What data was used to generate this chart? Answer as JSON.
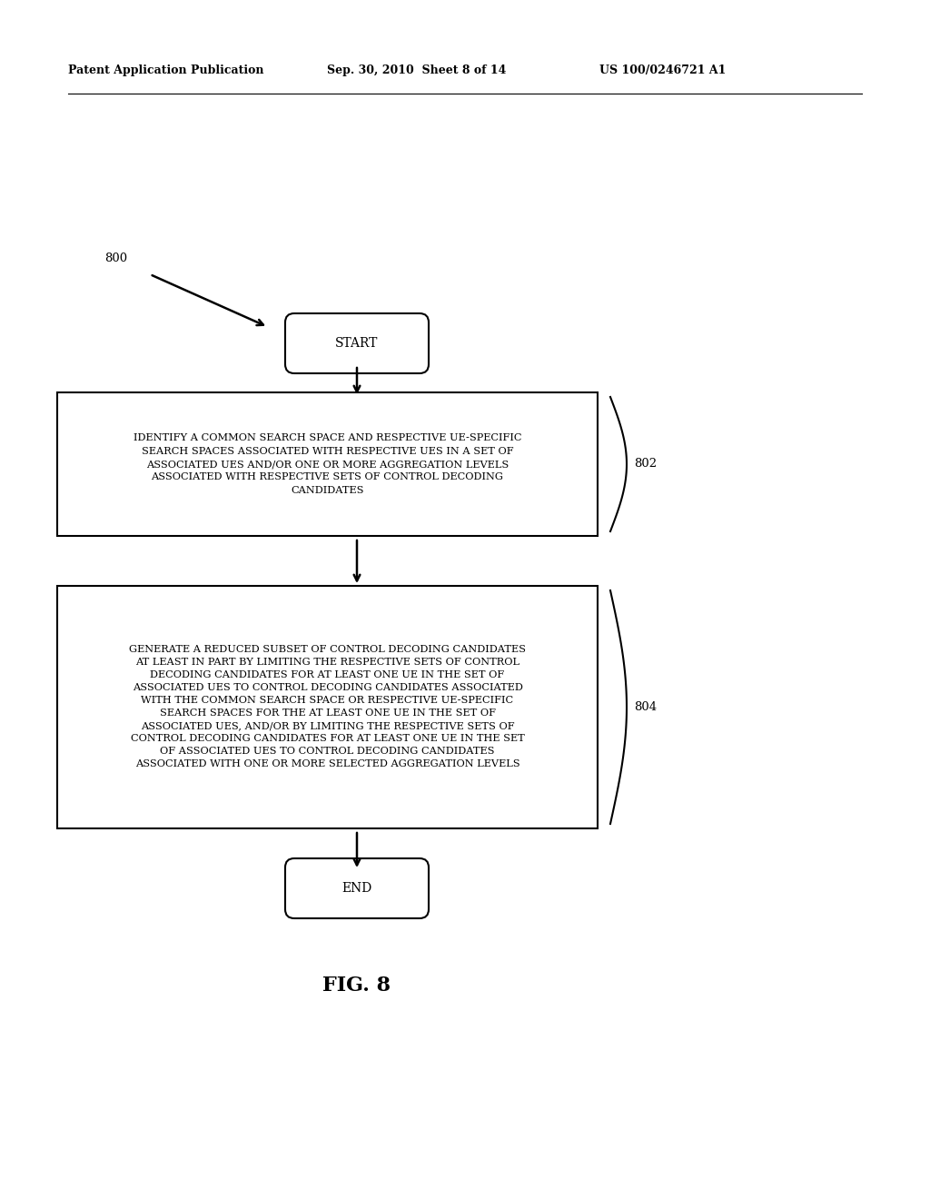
{
  "background_color": "#ffffff",
  "header_left": "Patent Application Publication",
  "header_mid": "Sep. 30, 2010  Sheet 8 of 14",
  "header_right": "US 100/0246721 A1",
  "fig_label": "FIG. 8",
  "diagram_label": "800",
  "label_802": "802",
  "label_804": "804",
  "start_text": "START",
  "end_text": "END",
  "box1_text": "IDENTIFY A COMMON SEARCH SPACE AND RESPECTIVE UE-SPECIFIC\nSEARCH SPACES ASSOCIATED WITH RESPECTIVE UES IN A SET OF\nASSOCIATED UES AND/OR ONE OR MORE AGGREGATION LEVELS\nASSOCIATED WITH RESPECTIVE SETS OF CONTROL DECODING\nCANDIDATES",
  "box2_text": "GENERATE A REDUCED SUBSET OF CONTROL DECODING CANDIDATES\nAT LEAST IN PART BY LIMITING THE RESPECTIVE SETS OF CONTROL\nDECODING CANDIDATES FOR AT LEAST ONE UE IN THE SET OF\nASSOCIATED UES TO CONTROL DECODING CANDIDATES ASSOCIATED\nWITH THE COMMON SEARCH SPACE OR RESPECTIVE UE-SPECIFIC\nSEARCH SPACES FOR THE AT LEAST ONE UE IN THE SET OF\nASSOCIATED UES, AND/OR BY LIMITING THE RESPECTIVE SETS OF\nCONTROL DECODING CANDIDATES FOR AT LEAST ONE UE IN THE SET\nOF ASSOCIATED UES TO CONTROL DECODING CANDIDATES\nASSOCIATED WITH ONE OR MORE SELECTED AGGREGATION LEVELS",
  "text_color": "#000000",
  "box_edge_color": "#000000",
  "box_face_color": "#ffffff",
  "arrow_color": "#000000",
  "header_fontsize": 9,
  "body_fontsize": 8.2,
  "label_fontsize": 9.5,
  "terminal_fontsize": 10,
  "fig_fontsize": 16
}
